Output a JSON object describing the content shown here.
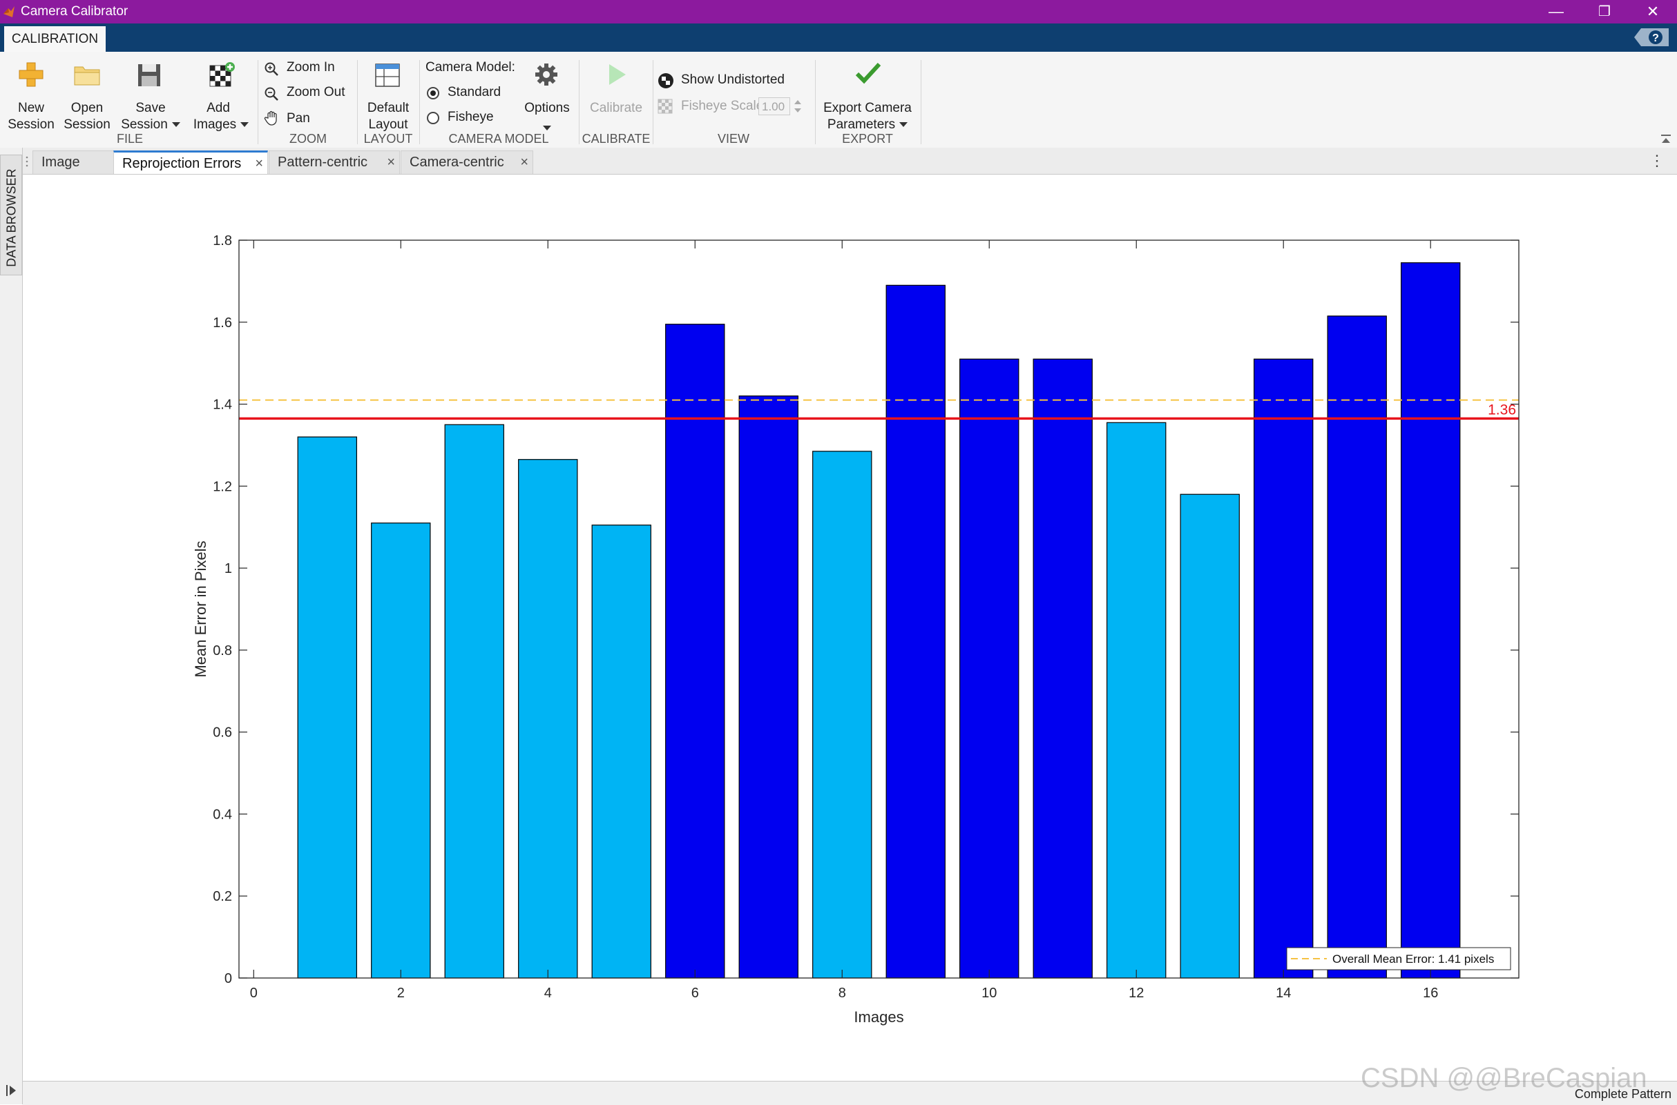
{
  "window": {
    "title": "Camera Calibrator",
    "controls": {
      "minimize": "—",
      "restore": "❐",
      "close": "✕"
    }
  },
  "ribbon_tabs": {
    "active": "CALIBRATION"
  },
  "ribbon": {
    "file": {
      "new_session": "New\nSession",
      "open_session": "Open\nSession",
      "save_session": "Save\nSession",
      "add_images": "Add\nImages",
      "group": "FILE"
    },
    "zoom": {
      "zoom_in": "Zoom In",
      "zoom_out": "Zoom Out",
      "pan": "Pan",
      "group": "ZOOM"
    },
    "layout": {
      "default_layout": "Default\nLayout",
      "group": "LAYOUT"
    },
    "camera_model": {
      "label": "Camera Model:",
      "standard": "Standard",
      "fisheye": "Fisheye",
      "selected": "Standard",
      "options": "Options",
      "group": "CAMERA MODEL"
    },
    "calibrate": {
      "button": "Calibrate",
      "group": "CALIBRATE"
    },
    "view": {
      "show_undistorted": "Show Undistorted",
      "fisheye_scale_label": "Fisheye Scale",
      "fisheye_scale_value": "1.00",
      "group": "VIEW"
    },
    "export": {
      "button": "Export Camera\nParameters",
      "group": "EXPORT"
    }
  },
  "side_panel": {
    "data_browser": "DATA BROWSER"
  },
  "doc_tabs": [
    {
      "label": "Image",
      "closable": false,
      "active": false
    },
    {
      "label": "Reprojection Errors",
      "closable": true,
      "active": true
    },
    {
      "label": "Pattern-centric",
      "closable": true,
      "active": false
    },
    {
      "label": "Camera-centric",
      "closable": true,
      "active": false
    }
  ],
  "chart_data": {
    "type": "bar",
    "title": "",
    "xlabel": "Images",
    "ylabel": "Mean Error in Pixels",
    "x": [
      1,
      2,
      3,
      4,
      5,
      6,
      7,
      8,
      9,
      10,
      11,
      12,
      13,
      14,
      15,
      16
    ],
    "values": [
      1.32,
      1.11,
      1.35,
      1.265,
      1.105,
      1.595,
      1.42,
      1.285,
      1.69,
      1.51,
      1.51,
      1.355,
      1.18,
      1.51,
      1.615,
      1.745
    ],
    "highlighted": [
      false,
      false,
      false,
      false,
      false,
      true,
      true,
      false,
      true,
      true,
      true,
      false,
      false,
      true,
      true,
      true
    ],
    "xlim": [
      -0.2,
      17.2
    ],
    "ylim": [
      0,
      1.8
    ],
    "xticks": [
      0,
      2,
      4,
      6,
      8,
      10,
      12,
      14,
      16
    ],
    "yticks": [
      0,
      0.2,
      0.4,
      0.6,
      0.8,
      1,
      1.2,
      1.4,
      1.6,
      1.8
    ],
    "mean_line": {
      "value": 1.41,
      "style": "dashed",
      "color": "#f5c242"
    },
    "threshold_line": {
      "value": 1.365,
      "label": "1.36",
      "color": "#e8141c"
    },
    "legend": {
      "entries": [
        "Overall Mean Error: 1.41 pixels"
      ],
      "position": "bottom-right"
    },
    "colors": {
      "normal": "#00b4f4",
      "highlighted": "#0000f0",
      "edge": "#000000"
    },
    "grid": false
  },
  "status": {
    "text": "Complete Pattern"
  },
  "watermark": "CSDN @@BreCaspian"
}
